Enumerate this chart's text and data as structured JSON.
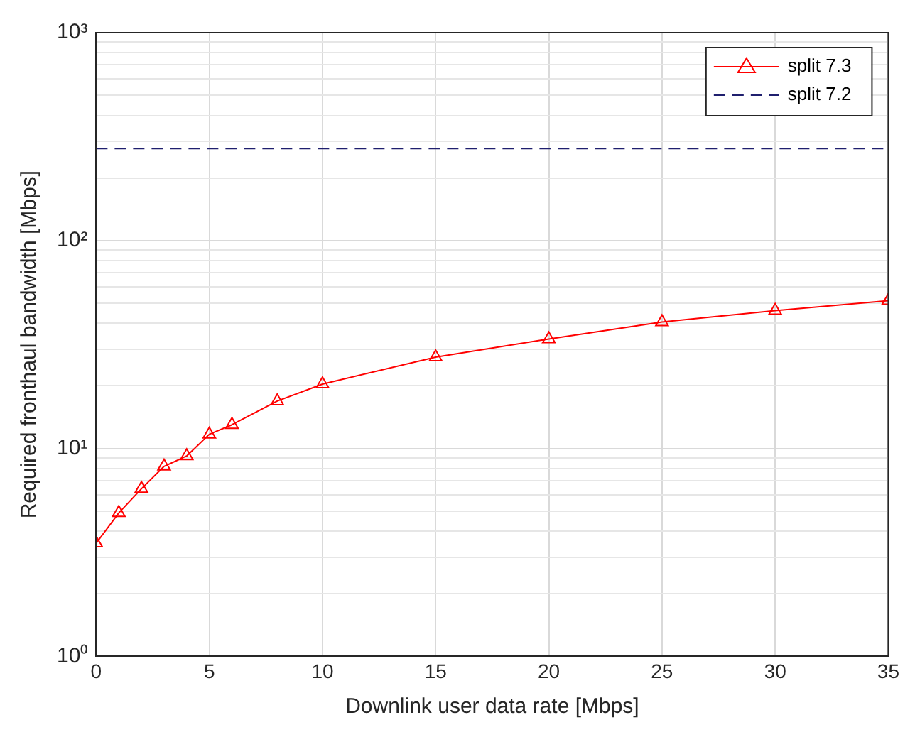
{
  "chart_data": {
    "type": "line",
    "xlabel": "Downlink user data rate [Mbps]",
    "ylabel": "Required fronthaul bandwidth [Mbps]",
    "xlim": [
      0,
      35
    ],
    "xticks": [
      0,
      5,
      10,
      15,
      20,
      25,
      30,
      35
    ],
    "ylim": [
      1,
      1000
    ],
    "yticks": [
      {
        "value": 1,
        "label": "10⁰"
      },
      {
        "value": 2,
        "label": null
      },
      {
        "value": 3,
        "label": null
      },
      {
        "value": 4,
        "label": null
      },
      {
        "value": 5,
        "label": null
      },
      {
        "value": 6,
        "label": null
      },
      {
        "value": 7,
        "label": null
      },
      {
        "value": 8,
        "label": null
      },
      {
        "value": 9,
        "label": null
      },
      {
        "value": 10,
        "label": "10¹"
      },
      {
        "value": 20,
        "label": null
      },
      {
        "value": 30,
        "label": null
      },
      {
        "value": 40,
        "label": null
      },
      {
        "value": 50,
        "label": null
      },
      {
        "value": 60,
        "label": null
      },
      {
        "value": 70,
        "label": null
      },
      {
        "value": 80,
        "label": null
      },
      {
        "value": 90,
        "label": null
      },
      {
        "value": 100,
        "label": "10²"
      },
      {
        "value": 200,
        "label": null
      },
      {
        "value": 300,
        "label": null
      },
      {
        "value": 400,
        "label": null
      },
      {
        "value": 500,
        "label": null
      },
      {
        "value": 600,
        "label": null
      },
      {
        "value": 700,
        "label": null
      },
      {
        "value": 800,
        "label": null
      },
      {
        "value": 900,
        "label": null
      },
      {
        "value": 1000,
        "label": "10³"
      }
    ],
    "log": "y",
    "grid": true,
    "legend": "top right",
    "marker": "triangle",
    "series": [
      {
        "name": "split 7.3",
        "color": "#ff0000",
        "x": [
          0,
          1,
          2,
          3,
          4,
          5,
          6,
          8,
          10,
          15,
          20,
          25,
          30,
          35
        ],
        "values": [
          3.5,
          4.9,
          6.4,
          8.2,
          9.2,
          11.7,
          13,
          16.9,
          20.4,
          27.5,
          33.6,
          40.6,
          46,
          51.4
        ]
      },
      {
        "name": "split 7.2",
        "color": "#1f1f6e",
        "marker": "none",
        "line_style": "dashed",
        "x": [
          0,
          35
        ],
        "values": [
          277,
          277
        ]
      }
    ]
  }
}
